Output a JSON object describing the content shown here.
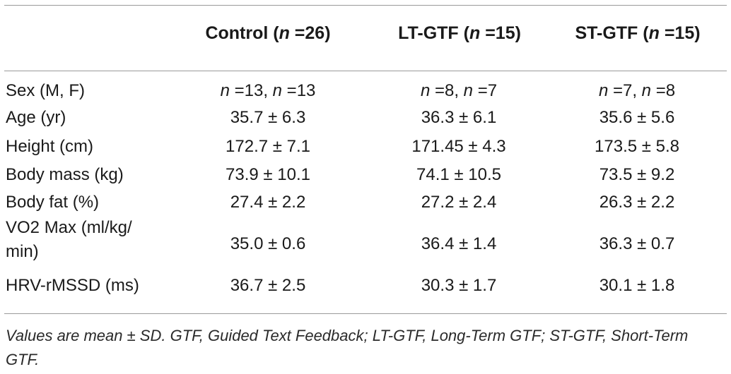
{
  "table": {
    "headers": [
      "Control (n =26)",
      "LT-GTF (n =15)",
      "ST-GTF (n =15)"
    ],
    "rows": [
      {
        "label": "Sex (M, F)",
        "values": [
          "n =13, n =13",
          "n =8, n =7",
          "n =7, n =8"
        ]
      },
      {
        "label": "Age (yr)",
        "values": [
          "35.7 ± 6.3",
          "36.3 ± 6.1",
          "35.6 ± 5.6"
        ]
      },
      {
        "label": "Height (cm)",
        "values": [
          "172.7 ± 7.1",
          "171.45 ± 4.3",
          "173.5 ± 5.8"
        ]
      },
      {
        "label": "Body mass (kg)",
        "values": [
          "73.9 ± 10.1",
          "74.1 ± 10.5",
          "73.5 ± 9.2"
        ]
      },
      {
        "label": "Body fat (%)",
        "values": [
          "27.4 ± 2.2",
          "27.2 ± 2.4",
          "26.3 ± 2.2"
        ]
      },
      {
        "label": "VO2 Max (ml/kg/ min)",
        "values": [
          "35.0 ± 0.6",
          "36.4 ± 1.4",
          "36.3 ± 0.7"
        ]
      },
      {
        "label": "HRV-rMSSD (ms)",
        "values": [
          "36.7 ± 2.5",
          "30.3 ± 1.7",
          "30.1 ± 1.8"
        ]
      }
    ]
  },
  "footnote": "Values are mean ± SD. GTF, Guided Text Feedback; LT-GTF, Long-Term GTF; ST-GTF, Short-Term GTF."
}
